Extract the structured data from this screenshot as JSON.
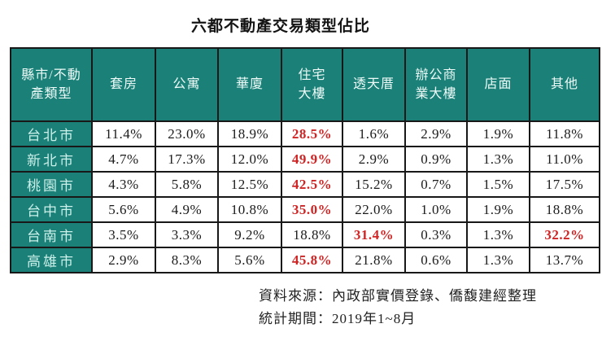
{
  "title": "六都不動產交易類型佔比",
  "table": {
    "corner_header": "縣市/不動\n產類型",
    "columns": [
      "套房",
      "公寓",
      "華廈",
      "住宅\n大樓",
      "透天厝",
      "辦公商\n業大樓",
      "店面",
      "其他"
    ],
    "rows": [
      {
        "city": "台北市",
        "values": [
          "11.4%",
          "23.0%",
          "18.9%",
          "28.5%",
          "1.6%",
          "2.9%",
          "1.9%",
          "11.8%"
        ],
        "highlights": [
          3
        ]
      },
      {
        "city": "新北市",
        "values": [
          "4.7%",
          "17.3%",
          "12.0%",
          "49.9%",
          "2.9%",
          "0.9%",
          "1.3%",
          "11.0%"
        ],
        "highlights": [
          3
        ]
      },
      {
        "city": "桃園市",
        "values": [
          "4.3%",
          "5.8%",
          "12.5%",
          "42.5%",
          "15.2%",
          "0.7%",
          "1.5%",
          "17.5%"
        ],
        "highlights": [
          3
        ]
      },
      {
        "city": "台中市",
        "values": [
          "5.6%",
          "4.9%",
          "10.8%",
          "35.0%",
          "22.0%",
          "1.0%",
          "1.9%",
          "18.8%"
        ],
        "highlights": [
          3
        ]
      },
      {
        "city": "台南市",
        "values": [
          "3.5%",
          "3.3%",
          "9.2%",
          "18.8%",
          "31.4%",
          "0.3%",
          "1.3%",
          "32.2%"
        ],
        "highlights": [
          4,
          7
        ]
      },
      {
        "city": "高雄市",
        "values": [
          "2.9%",
          "8.3%",
          "5.6%",
          "45.8%",
          "21.8%",
          "0.6%",
          "1.3%",
          "13.7%"
        ],
        "highlights": [
          3
        ]
      }
    ]
  },
  "chart_data": {
    "type": "table",
    "title": "六都不動產交易類型佔比",
    "row_axis_label": "縣市/不動產類型",
    "columns": [
      "套房",
      "公寓",
      "華廈",
      "住宅大樓",
      "透天厝",
      "辦公商業大樓",
      "店面",
      "其他"
    ],
    "rows": [
      "台北市",
      "新北市",
      "桃園市",
      "台中市",
      "台南市",
      "高雄市"
    ],
    "values_percent": [
      [
        11.4,
        23.0,
        18.9,
        28.5,
        1.6,
        2.9,
        1.9,
        11.8
      ],
      [
        4.7,
        17.3,
        12.0,
        49.9,
        2.9,
        0.9,
        1.3,
        11.0
      ],
      [
        4.3,
        5.8,
        12.5,
        42.5,
        15.2,
        0.7,
        1.5,
        17.5
      ],
      [
        5.6,
        4.9,
        10.8,
        35.0,
        22.0,
        1.0,
        1.9,
        18.8
      ],
      [
        3.5,
        3.3,
        9.2,
        18.8,
        31.4,
        0.3,
        1.3,
        32.2
      ],
      [
        2.9,
        8.3,
        5.6,
        45.8,
        21.8,
        0.6,
        1.3,
        13.7
      ]
    ],
    "highlighted_cells_note": "max value of each row shown in red bold; 台南市 also 其他 32.2% in red"
  },
  "footer": {
    "source": "資料來源：內政部實價登錄、僑馥建經整理",
    "period": "統計期間：2019年1~8月"
  },
  "colors": {
    "header_bg": "#1A8078",
    "header_text": "#EDFAF7",
    "row_header_text": "#CBEFE9",
    "highlight_red": "#D02424",
    "data_text": "#1B1B1B",
    "grid_border": "#181818"
  }
}
